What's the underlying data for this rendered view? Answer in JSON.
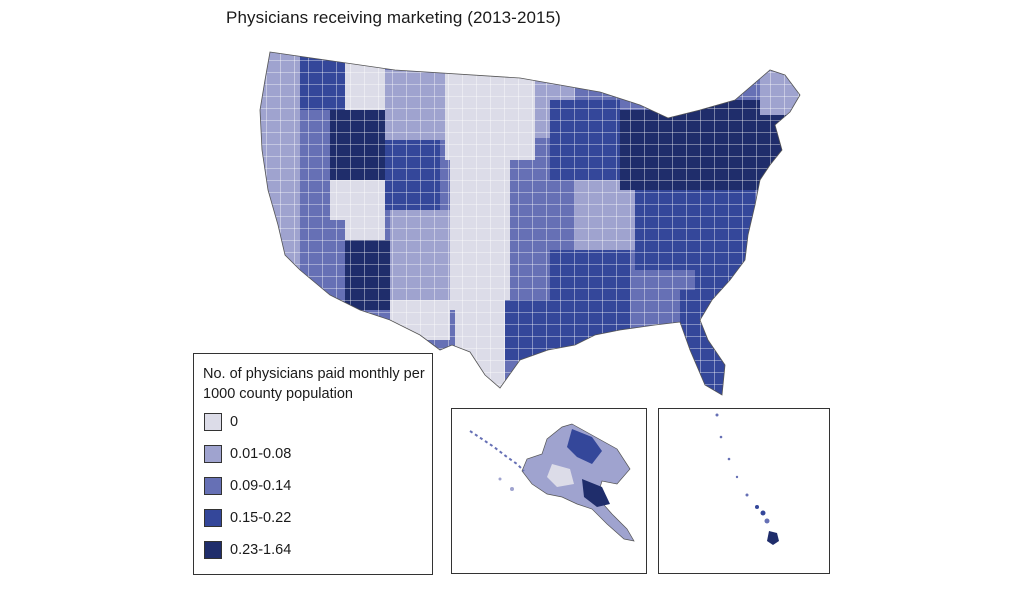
{
  "title": "Physicians receiving marketing (2013-2015)",
  "legend": {
    "title": "No. of physicians paid monthly per 1000 county population",
    "items": [
      {
        "label": "0",
        "color": "#dcdce8"
      },
      {
        "label": "0.01-0.08",
        "color": "#9fa3cf"
      },
      {
        "label": "0.09-0.14",
        "color": "#6670b5"
      },
      {
        "label": "0.15-0.22",
        "color": "#34479a"
      },
      {
        "label": "0.23-1.64",
        "color": "#1f2d6b"
      }
    ]
  },
  "insets": [
    {
      "name": "Alaska"
    },
    {
      "name": "Hawaii"
    }
  ],
  "colors": {
    "border": "#333333",
    "county_line": "#ffffff"
  }
}
